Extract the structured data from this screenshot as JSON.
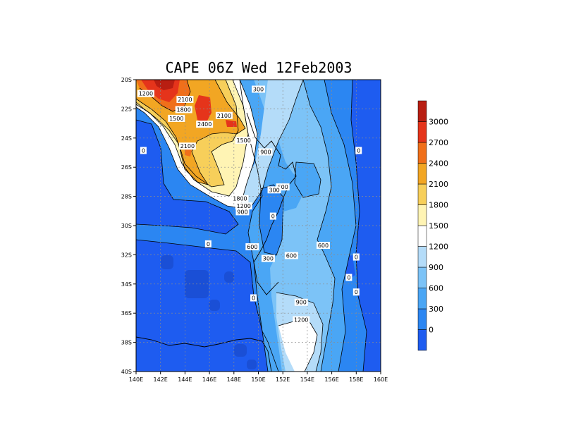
{
  "chart_data": {
    "type": "heatmap",
    "title": "CAPE 06Z Wed 12Feb2003",
    "x_ticks": [
      "140E",
      "142E",
      "144E",
      "146E",
      "148E",
      "150E",
      "152E",
      "154E",
      "156E",
      "158E",
      "160E"
    ],
    "y_ticks": [
      "20S",
      "22S",
      "24S",
      "26S",
      "28S",
      "30S",
      "32S",
      "34S",
      "36S",
      "38S",
      "40S"
    ],
    "xlim": [
      140,
      160
    ],
    "ylim": [
      -40,
      -20
    ],
    "grid": true,
    "colorbar": {
      "levels": [
        0,
        300,
        600,
        900,
        1200,
        1500,
        1800,
        2100,
        2400,
        2700,
        3000
      ],
      "labels": [
        "0",
        "300",
        "600",
        "900",
        "1200",
        "1500",
        "1800",
        "2100",
        "2400",
        "2700",
        "3000"
      ],
      "colors": [
        "#1e5cf0",
        "#2b86f2",
        "#4aa6f5",
        "#7cc3f7",
        "#b4dcf9",
        "#ffffff",
        "#fff4b4",
        "#f7cf5a",
        "#f2a623",
        "#f06f1a",
        "#e5341b",
        "#b81e12"
      ]
    },
    "contour_labels": [
      {
        "text": "1200",
        "lon": 140.8,
        "lat": -21.0
      },
      {
        "text": "2100",
        "lon": 144.0,
        "lat": -21.4
      },
      {
        "text": "1800",
        "lon": 143.9,
        "lat": -22.1
      },
      {
        "text": "1500",
        "lon": 143.3,
        "lat": -22.7
      },
      {
        "text": "2400",
        "lon": 145.6,
        "lat": -23.1
      },
      {
        "text": "2100",
        "lon": 147.2,
        "lat": -22.5
      },
      {
        "text": "300",
        "lon": 150.0,
        "lat": -20.7
      },
      {
        "text": "1500",
        "lon": 148.8,
        "lat": -24.2
      },
      {
        "text": "2100",
        "lon": 144.2,
        "lat": -24.6
      },
      {
        "text": "0",
        "lon": 140.6,
        "lat": -24.9
      },
      {
        "text": "900",
        "lon": 150.6,
        "lat": -25.0
      },
      {
        "text": "0",
        "lon": 158.2,
        "lat": -24.9
      },
      {
        "text": "600",
        "lon": 152.0,
        "lat": -27.4
      },
      {
        "text": "300",
        "lon": 151.3,
        "lat": -27.6
      },
      {
        "text": "1800",
        "lon": 148.5,
        "lat": -28.2
      },
      {
        "text": "1200",
        "lon": 148.8,
        "lat": -28.7
      },
      {
        "text": "900",
        "lon": 148.7,
        "lat": -29.1
      },
      {
        "text": "0",
        "lon": 151.2,
        "lat": -29.4
      },
      {
        "text": "0",
        "lon": 145.9,
        "lat": -31.3
      },
      {
        "text": "600",
        "lon": 149.5,
        "lat": -31.5
      },
      {
        "text": "600",
        "lon": 155.3,
        "lat": -31.4
      },
      {
        "text": "300",
        "lon": 150.8,
        "lat": -32.3
      },
      {
        "text": "600",
        "lon": 152.7,
        "lat": -32.1
      },
      {
        "text": "0",
        "lon": 158.0,
        "lat": -32.2
      },
      {
        "text": "0",
        "lon": 157.4,
        "lat": -33.6
      },
      {
        "text": "0",
        "lon": 158.0,
        "lat": -34.6
      },
      {
        "text": "0",
        "lon": 149.6,
        "lat": -35.0
      },
      {
        "text": "900",
        "lon": 153.5,
        "lat": -35.3
      },
      {
        "text": "1200",
        "lon": 153.5,
        "lat": -36.5
      }
    ]
  }
}
